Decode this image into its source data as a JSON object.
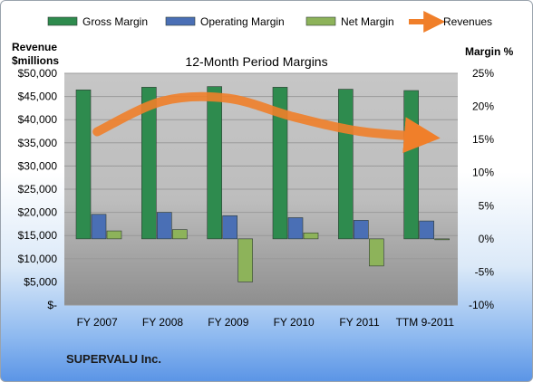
{
  "chart_data": {
    "type": "bar",
    "title": "12-Month Period Margins",
    "company": "SUPERVALU Inc.",
    "y_left_label": [
      "Revenue",
      "$millions"
    ],
    "y_right_label": "Margin %",
    "categories": [
      "FY 2007",
      "FY 2008",
      "FY 2009",
      "FY 2010",
      "FY 2011",
      "TTM 9-2011"
    ],
    "y_left_ticks": [
      "$-",
      "$5,000",
      "$10,000",
      "$15,000",
      "$20,000",
      "$25,000",
      "$30,000",
      "$35,000",
      "$40,000",
      "$45,000",
      "$50,000"
    ],
    "y_right_ticks": [
      "-10%",
      "-5%",
      "0%",
      "5%",
      "10%",
      "15%",
      "20%",
      "25%"
    ],
    "ylim_left": [
      0,
      50000
    ],
    "ylim_right": [
      -10,
      25
    ],
    "series": [
      {
        "name": "Gross Margin",
        "axis": "right",
        "kind": "bar",
        "color": "#2e8b4e",
        "values": [
          22.5,
          22.9,
          23.0,
          22.9,
          22.6,
          22.4
        ]
      },
      {
        "name": "Operating Margin",
        "axis": "right",
        "kind": "bar",
        "color": "#4a6fb5",
        "values": [
          3.7,
          4.0,
          3.5,
          3.2,
          2.8,
          2.7
        ]
      },
      {
        "name": "Net Margin",
        "axis": "right",
        "kind": "bar",
        "color": "#8db35a",
        "values": [
          1.2,
          1.4,
          -6.5,
          0.9,
          -4.1,
          -0.1
        ]
      },
      {
        "name": "Revenues",
        "axis": "left",
        "kind": "line",
        "color": "#f07f2a",
        "values": [
          37400,
          44000,
          44600,
          40600,
          37500,
          36300
        ]
      }
    ],
    "legend_position": "top",
    "grid": true
  }
}
